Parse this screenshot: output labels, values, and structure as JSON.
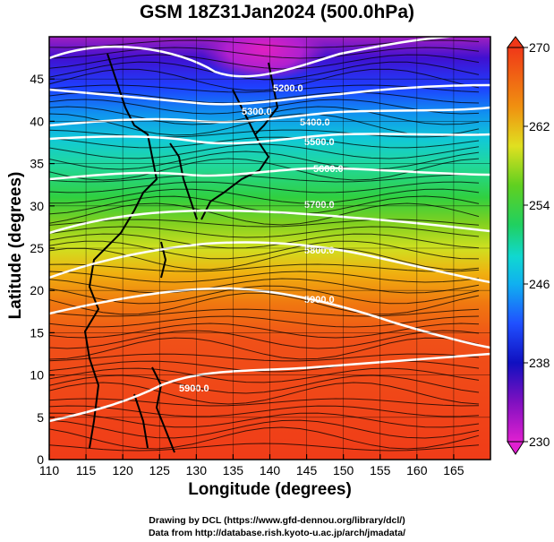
{
  "title": "GSM 18Z31Jan2024 (500.0hPa)",
  "x_axis": {
    "label": "Longitude (degrees)",
    "ticks": [
      "110",
      "115",
      "120",
      "125",
      "130",
      "135",
      "140",
      "145",
      "150",
      "155",
      "160",
      "165"
    ]
  },
  "y_axis": {
    "label": "Latitude  (degrees)",
    "ticks": [
      "0",
      "5",
      "10",
      "15",
      "20",
      "25",
      "30",
      "35",
      "40",
      "45"
    ]
  },
  "colorbar": {
    "ticks": [
      "230",
      "238",
      "246",
      "254",
      "262",
      "270"
    ]
  },
  "contour_labels": [
    "5200.0",
    "5300.0",
    "5400.0",
    "5500.0",
    "5600.0",
    "5700.0",
    "5800.0",
    "5900.0",
    "5900.0"
  ],
  "credits": {
    "line1": "Drawing by DCL (https://www.gfd-dennou.org/library/dcl/)",
    "line2": "Data from http://database.rish.kyoto-u.ac.jp/arch/jmadata/"
  },
  "chart_data": {
    "type": "heatmap",
    "title": "GSM 18Z31Jan2024 (500.0hPa)",
    "xlabel": "Longitude (degrees)",
    "ylabel": "Latitude  (degrees)",
    "xlim": [
      110,
      170
    ],
    "ylim": [
      0,
      50
    ],
    "color_range": [
      230,
      270
    ],
    "contours": [
      {
        "label": "5200.0",
        "lat": 47.5
      },
      {
        "label": "5300.0",
        "lat": 43.5
      },
      {
        "label": "5400.0",
        "lat": 41.0
      },
      {
        "label": "5500.0",
        "lat": 38.5
      },
      {
        "label": "5600.0",
        "lat": 35.5
      },
      {
        "label": "5700.0",
        "lat": 30.5
      },
      {
        "label": "5800.0",
        "lat": 25.0
      },
      {
        "label": "5900.0",
        "lat": 17.5
      },
      {
        "label": "5900.0",
        "lat": 8.5
      }
    ]
  }
}
